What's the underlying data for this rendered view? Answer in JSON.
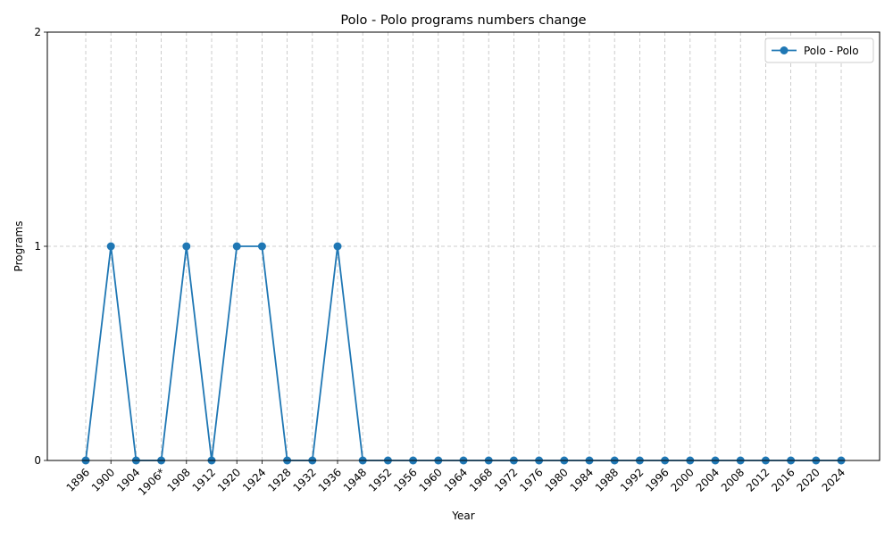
{
  "chart_data": {
    "type": "line",
    "title": "Polo - Polo programs numbers change",
    "xlabel": "Year",
    "ylabel": "Programs",
    "categories": [
      "1896",
      "1900",
      "1904",
      "1906*",
      "1908",
      "1912",
      "1920",
      "1924",
      "1928",
      "1932",
      "1936",
      "1948",
      "1952",
      "1956",
      "1960",
      "1964",
      "1968",
      "1972",
      "1976",
      "1980",
      "1984",
      "1988",
      "1992",
      "1996",
      "2000",
      "2004",
      "2008",
      "2012",
      "2016",
      "2020",
      "2024"
    ],
    "series": [
      {
        "name": "Polo - Polo",
        "values": [
          0,
          1,
          0,
          0,
          1,
          0,
          1,
          1,
          0,
          0,
          1,
          0,
          0,
          0,
          0,
          0,
          0,
          0,
          0,
          0,
          0,
          0,
          0,
          0,
          0,
          0,
          0,
          0,
          0,
          0,
          0
        ],
        "color": "#1f77b4",
        "marker": "circle"
      }
    ],
    "yticks": [
      0,
      1,
      2
    ],
    "ylim": [
      0,
      2
    ],
    "grid": true,
    "grid_style": "dashed",
    "legend_position": "upper-right"
  }
}
